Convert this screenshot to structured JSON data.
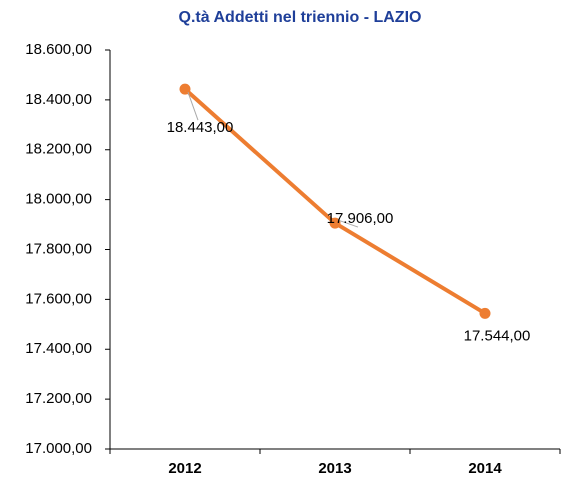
{
  "chart_data": {
    "type": "line",
    "title": "Q.tà Addetti nel triennio - LAZIO",
    "categories": [
      "2012",
      "2013",
      "2014"
    ],
    "values": [
      18443,
      17906,
      17544
    ],
    "value_labels": [
      "18.443,00",
      "17.906,00",
      "17.544,00"
    ],
    "color": "#ed7d31",
    "ylim": [
      17000,
      18600
    ],
    "yticks": [
      {
        "value": 17000,
        "label": "17.000,00"
      },
      {
        "value": 17200,
        "label": "17.200,00"
      },
      {
        "value": 17400,
        "label": "17.400,00"
      },
      {
        "value": 17600,
        "label": "17.600,00"
      },
      {
        "value": 17800,
        "label": "17.800,00"
      },
      {
        "value": 18000,
        "label": "18.000,00"
      },
      {
        "value": 18200,
        "label": "18.200,00"
      },
      {
        "value": 18400,
        "label": "18.400,00"
      },
      {
        "value": 18600,
        "label": "18.600,00"
      }
    ],
    "grid": false
  }
}
